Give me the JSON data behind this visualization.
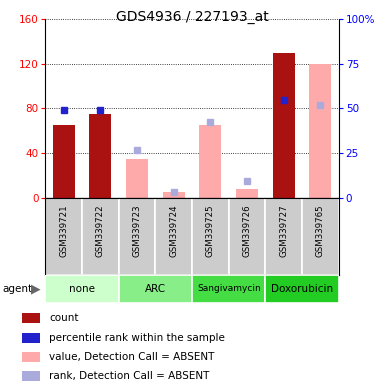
{
  "title": "GDS4936 / 227193_at",
  "samples": [
    "GSM339721",
    "GSM339722",
    "GSM339723",
    "GSM339724",
    "GSM339725",
    "GSM339726",
    "GSM339727",
    "GSM339765"
  ],
  "agents": [
    {
      "label": "none",
      "color": "#ccffcc",
      "span": [
        0,
        2
      ]
    },
    {
      "label": "ARC",
      "color": "#88ee88",
      "span": [
        2,
        4
      ]
    },
    {
      "label": "Sangivamycin",
      "color": "#44dd44",
      "span": [
        4,
        6
      ]
    },
    {
      "label": "Doxorubicin",
      "color": "#22cc22",
      "span": [
        6,
        8
      ]
    }
  ],
  "count_values": [
    65,
    75,
    null,
    null,
    null,
    null,
    130,
    null
  ],
  "percentile_values": [
    79,
    79,
    null,
    null,
    null,
    null,
    88,
    null
  ],
  "absent_value_values": [
    null,
    null,
    35,
    5,
    65,
    8,
    null,
    120
  ],
  "absent_rank_values": [
    null,
    null,
    43,
    5,
    68,
    15,
    null,
    83
  ],
  "ylim": [
    0,
    160
  ],
  "y2lim": [
    0,
    100
  ],
  "yticks": [
    0,
    40,
    80,
    120,
    160
  ],
  "y2ticks": [
    0,
    25,
    50,
    75,
    100
  ],
  "count_color": "#aa1111",
  "percentile_color": "#2222cc",
  "absent_value_color": "#ffaaaa",
  "absent_rank_color": "#aaaadd",
  "bar_width": 0.6,
  "legend_items": [
    {
      "color": "#aa1111",
      "label": "count"
    },
    {
      "color": "#2222cc",
      "label": "percentile rank within the sample"
    },
    {
      "color": "#ffaaaa",
      "label": "value, Detection Call = ABSENT"
    },
    {
      "color": "#aaaadd",
      "label": "rank, Detection Call = ABSENT"
    }
  ],
  "fig_width": 3.85,
  "fig_height": 3.84,
  "dpi": 100
}
